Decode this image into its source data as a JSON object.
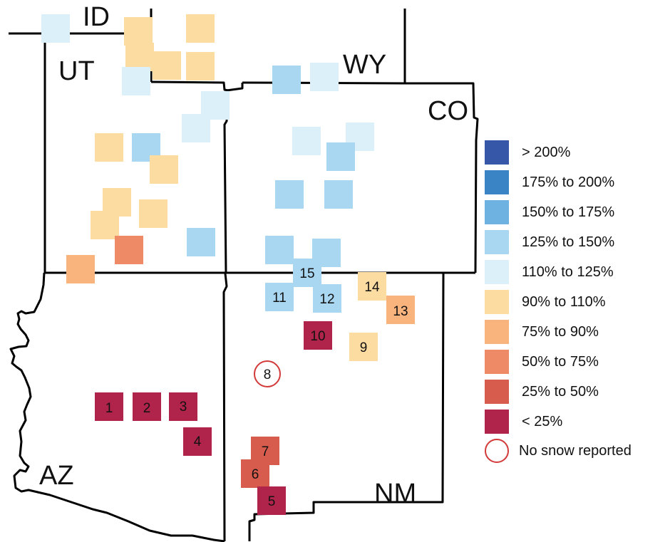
{
  "map": {
    "state_labels": {
      "id": "ID",
      "ut": "UT",
      "wy": "WY",
      "co": "CO",
      "az": "AZ",
      "nm": "NM"
    },
    "colors": {
      "gt200": "#3657a8",
      "c175_200": "#3a84c6",
      "c150_175": "#6eb2e2",
      "c125_150": "#a9d6f1",
      "c110_125": "#dcf0fa",
      "c90_110": "#fddca2",
      "c75_90": "#f9b37c",
      "c50_75": "#ee8a65",
      "c25_50": "#d85c4e",
      "lt25": "#b0234b",
      "no_snow": "#d33a3a"
    },
    "stations": {
      "s1": "1",
      "s2": "2",
      "s3": "3",
      "s4": "4",
      "s5": "5",
      "s6": "6",
      "s7": "7",
      "s8": "8",
      "s9": "9",
      "s10": "10",
      "s11": "11",
      "s12": "12",
      "s13": "13",
      "s14": "14",
      "s15": "15"
    }
  },
  "legend": {
    "items": [
      {
        "label": "> 200%",
        "color": "#3657a8"
      },
      {
        "label": "175% to 200%",
        "color": "#3a84c6"
      },
      {
        "label": "150% to 175%",
        "color": "#6eb2e2"
      },
      {
        "label": "125% to 150%",
        "color": "#a9d6f1"
      },
      {
        "label": "110% to 125%",
        "color": "#dcf0fa"
      },
      {
        "label": "90% to 110%",
        "color": "#fddca2"
      },
      {
        "label": "75% to 90%",
        "color": "#f9b37c"
      },
      {
        "label": "50% to 75%",
        "color": "#ee8a65"
      },
      {
        "label": "25% to 50%",
        "color": "#d85c4e"
      },
      {
        "label": "< 25%",
        "color": "#b0234b"
      }
    ],
    "no_snow_label": "No snow reported"
  }
}
